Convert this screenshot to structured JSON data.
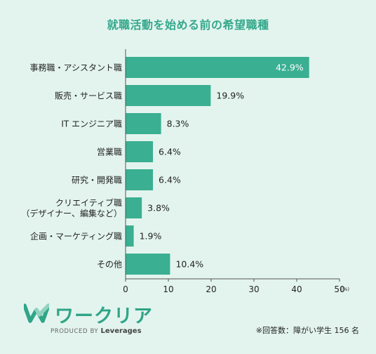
{
  "chart_data": {
    "type": "bar",
    "orientation": "horizontal",
    "title": "就職活動を始める前の希望職種",
    "categories": [
      [
        "事務職・アシスタント職"
      ],
      [
        "販売・サービス職"
      ],
      [
        "IT エンジニア職"
      ],
      [
        "営業職"
      ],
      [
        "研究・開発職"
      ],
      [
        "クリエイティブ職",
        "（デザイナー、編集など）"
      ],
      [
        "企画・マーケティング職"
      ],
      [
        "その他"
      ]
    ],
    "values": [
      42.9,
      19.9,
      8.3,
      6.4,
      6.4,
      3.8,
      1.9,
      10.4
    ],
    "value_labels": [
      "42.9%",
      "19.9%",
      "8.3%",
      "6.4%",
      "6.4%",
      "3.8%",
      "1.9%",
      "10.4%"
    ],
    "xlim": [
      0,
      50
    ],
    "xticks": [
      0,
      10,
      20,
      30,
      40,
      50
    ],
    "x_unit": "(%)",
    "bar_color": "#3aaf91",
    "grid": false
  },
  "brand": {
    "name": "ワークリア",
    "produced_by": "PRODUCED BY",
    "company": "Leverages",
    "color": "#2fa587",
    "icon": "w-logo-icon"
  },
  "footnote": "※回答数：障がい学生 156 名"
}
